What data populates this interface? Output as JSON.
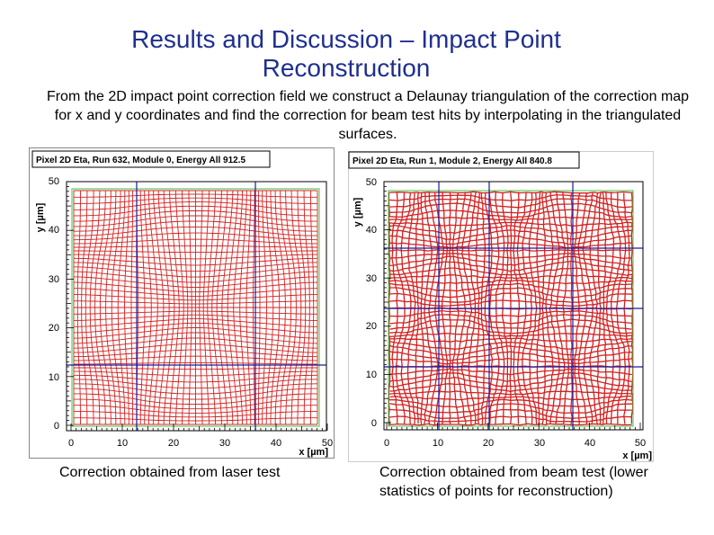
{
  "slide": {
    "title_line1": "Results and Discussion – Impact Point",
    "title_line2": "Reconstruction",
    "intro": "From the 2D impact point correction field we construct a Delaunay triangulation of the correction map for x and y coordinates and find the correction for beam test hits by interpolating in the triangulated surfaces."
  },
  "left_plot": {
    "header": "Pixel 2D Eta, Run 632, Module 0, Energy All  912.5",
    "y_label": "y [µm]",
    "x_label": "x [µm]",
    "x_ticks": [
      "0",
      "10",
      "20",
      "30",
      "40",
      "50"
    ],
    "y_ticks": [
      "0",
      "10",
      "20",
      "30",
      "40",
      "50"
    ],
    "caption": "Correction obtained from laser test"
  },
  "right_plot": {
    "header": "Pixel 2D Eta, Run 1, Module 2, Energy All  840.8",
    "y_label": "y [µm]",
    "x_label": "x [µm]",
    "x_ticks": [
      "0",
      "10",
      "20",
      "30",
      "40",
      "50"
    ],
    "y_ticks": [
      "0",
      "10",
      "20",
      "30",
      "40",
      "50"
    ],
    "caption_line1": "Correction obtained from beam test (lower",
    "caption_line2": "statistics of points for reconstruction)"
  },
  "colors": {
    "title": "#1f2f8f",
    "grid_red": "#d42020",
    "frame_green": "#40c040",
    "cell_blue": "#1a1aa0"
  }
}
